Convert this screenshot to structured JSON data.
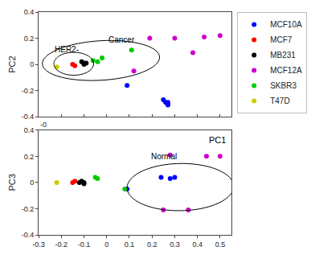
{
  "chart_data": [
    {
      "type": "scatter",
      "ylabel": "PC2",
      "xlim": [
        -0.3,
        0.55
      ],
      "ylim": [
        -0.4,
        0.4
      ],
      "xticks": [
        -0.3,
        -0.2,
        -0.1,
        0,
        0.1,
        0.2,
        0.3,
        0.4,
        0.5
      ],
      "yticks": [
        -0.4,
        -0.2,
        0,
        0.2,
        0.4
      ],
      "tick_labels": "y",
      "grid": false,
      "legend": "right",
      "marker": "circle",
      "series": [
        {
          "name": "MCF10A",
          "color": "#0000ff",
          "x": [
            0.09,
            0.25,
            0.27,
            0.26,
            0.27
          ],
          "values": [
            -0.16,
            -0.27,
            -0.29,
            -0.29,
            -0.31
          ]
        },
        {
          "name": "MCF7",
          "color": "#ff0000",
          "x": [
            -0.14,
            -0.15
          ],
          "values": [
            -0.01,
            0.0
          ]
        },
        {
          "name": "MB231",
          "color": "#000000",
          "x": [
            -0.11,
            -0.1,
            -0.1,
            -0.09
          ],
          "values": [
            0.02,
            0.01,
            0.0,
            0.01
          ]
        },
        {
          "name": "MCF12A",
          "color": "#cc00cc",
          "x": [
            0.12,
            0.19,
            0.3,
            0.38,
            0.43,
            0.5
          ],
          "values": [
            -0.05,
            0.2,
            0.2,
            0.09,
            0.21,
            0.22
          ]
        },
        {
          "name": "SKBR3",
          "color": "#00cc00",
          "x": [
            -0.06,
            -0.04,
            -0.02,
            0.11
          ],
          "values": [
            0.03,
            0.02,
            0.05,
            0.11
          ]
        },
        {
          "name": "T47D",
          "color": "#cccc00",
          "x": [
            -0.22
          ],
          "values": [
            -0.02
          ]
        }
      ],
      "ellipses": [
        {
          "center_x": -0.145,
          "center_y": 0.005,
          "width": 0.175,
          "height": 0.175,
          "angle": 5
        },
        {
          "center_x": -0.025,
          "center_y": 0.03,
          "width": 0.52,
          "height": 0.3,
          "angle": 8
        }
      ],
      "annotations": [
        {
          "text": "HER2-",
          "x": -0.235,
          "y": 0.07
        },
        {
          "text": "Cancer",
          "x": 0.0,
          "y": 0.14
        }
      ]
    },
    {
      "type": "scatter",
      "xlabel": "PC1",
      "ylabel": "PC3",
      "xlim": [
        -0.3,
        0.55
      ],
      "ylim": [
        -0.4,
        0.4
      ],
      "xticks": [
        -0.3,
        -0.2,
        -0.1,
        0,
        0.1,
        0.2,
        0.3,
        0.4,
        0.5
      ],
      "yticks": [
        -0.4,
        -0.2,
        0,
        0.2,
        0.4
      ],
      "grid": false,
      "marker": "circle",
      "series": [
        {
          "name": "MCF10A",
          "color": "#0000ff",
          "x": [
            0.09,
            0.24,
            0.3,
            0.28
          ],
          "values": [
            -0.05,
            0.04,
            0.04,
            0.03
          ]
        },
        {
          "name": "MCF7",
          "color": "#ff0000",
          "x": [
            -0.15,
            -0.14
          ],
          "values": [
            0.0,
            0.01
          ]
        },
        {
          "name": "MB231",
          "color": "#000000",
          "x": [
            -0.12,
            -0.11,
            -0.1,
            -0.1
          ],
          "values": [
            0.0,
            0.01,
            0.0,
            -0.01
          ]
        },
        {
          "name": "MCF12A",
          "color": "#cc00cc",
          "x": [
            0.25,
            0.28,
            0.36,
            0.44,
            0.5
          ],
          "values": [
            -0.21,
            0.21,
            -0.21,
            0.2,
            0.2
          ]
        },
        {
          "name": "SKBR3",
          "color": "#00cc00",
          "x": [
            -0.05,
            -0.04,
            0.08
          ],
          "values": [
            0.04,
            0.03,
            -0.05
          ]
        },
        {
          "name": "T47D",
          "color": "#cccc00",
          "x": [
            -0.22
          ],
          "values": [
            0.0
          ]
        }
      ],
      "ellipses": [
        {
          "center_x": 0.325,
          "center_y": -0.035,
          "width": 0.47,
          "height": 0.36,
          "angle": 3
        }
      ],
      "annotations": [
        {
          "text": "Normal",
          "x": 0.19,
          "y": 0.15
        },
        {
          "text": "-0"
        }
      ]
    }
  ]
}
